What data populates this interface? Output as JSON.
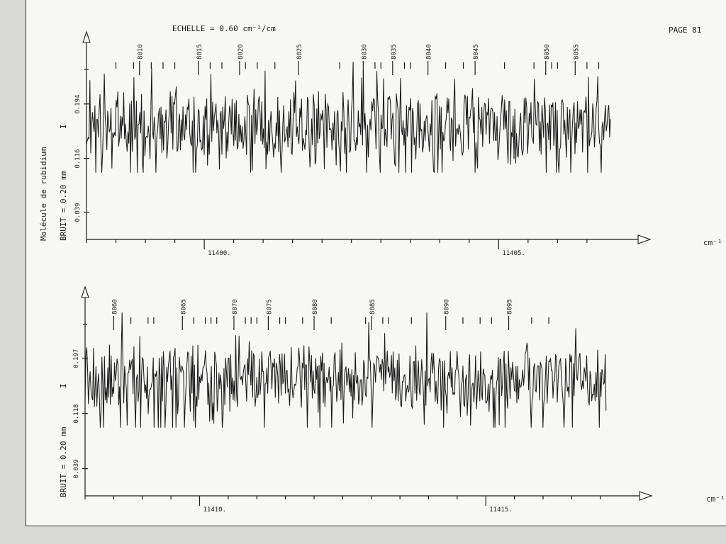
{
  "page": {
    "header_scale": "ECHELLE = 0.60 cm⁻¹/cm",
    "page_label": "PAGE 81",
    "molecule_label": "Molécule de rubidium"
  },
  "colors": {
    "ink": "#1a1a1a",
    "paper": "#f7f7f5",
    "background": "#d9d9d7"
  },
  "chart_data": [
    {
      "type": "line",
      "x_unit_label": "cm⁻¹",
      "y_axis_label": "BRUIT = 0.20 mm",
      "y_symbol": "I",
      "x_range": [
        11398.0,
        11406.9
      ],
      "x_ticks": [
        11400,
        11405
      ],
      "x_tick_labels": [
        "11400.",
        "11405."
      ],
      "y_range": [
        0,
        0.28
      ],
      "y_ticks": [
        0.039,
        0.116,
        0.194
      ],
      "y_tick_labels": [
        "0.039",
        "0.116",
        "0.194"
      ],
      "line_markers": {
        "labeled": [
          "8010",
          "8015",
          "8020",
          "8025",
          "8030",
          "8035",
          "8040",
          "8045",
          "8050",
          "8055"
        ],
        "labeled_x": [
          11398.9,
          11399.9,
          11400.6,
          11401.6,
          11402.7,
          11403.2,
          11403.8,
          11404.6,
          11405.8,
          11406.3
        ],
        "unlabeled_x": [
          11398.5,
          11398.8,
          11399.1,
          11399.3,
          11399.5,
          11400.1,
          11400.3,
          11400.7,
          11400.9,
          11401.2,
          11402.3,
          11402.9,
          11403.0,
          11403.4,
          11403.5,
          11404.1,
          11404.4,
          11405.1,
          11405.6,
          11405.9,
          11406.0,
          11406.5,
          11406.7
        ]
      },
      "series": [
        {
          "values_note": "",
          "x_start": 11398.0,
          "x_end": 11406.9
        }
      ]
    },
    {
      "type": "line",
      "x_unit_label": "cm⁻¹",
      "y_axis_label": "BRUIT = 0.20 mm",
      "y_symbol": "I",
      "x_range": [
        11408.0,
        11417.2
      ],
      "x_ticks": [
        11410,
        11415
      ],
      "x_tick_labels": [
        "11410.",
        "11415."
      ],
      "y_range": [
        0,
        0.28
      ],
      "y_ticks": [
        0.039,
        0.118,
        0.197
      ],
      "y_tick_labels": [
        "0.039",
        "0.118",
        "0.197"
      ],
      "line_markers": {
        "labeled": [
          "8060",
          "8065",
          "8070",
          "8075",
          "8080",
          "8085",
          "8090",
          "8095"
        ],
        "labeled_x": [
          11408.5,
          11409.7,
          11410.6,
          11411.2,
          11412.0,
          11413.0,
          11414.3,
          11415.4
        ],
        "unlabeled_x": [
          11408.8,
          11409.1,
          11409.2,
          11409.9,
          11410.1,
          11410.2,
          11410.3,
          11410.8,
          11410.9,
          11411.0,
          11411.4,
          11411.5,
          11411.8,
          11412.3,
          11412.9,
          11413.2,
          11413.3,
          11413.7,
          11414.6,
          11414.9,
          11415.1,
          11415.8,
          11416.1
        ]
      },
      "series": [
        {
          "values_note": "",
          "x_start": 11408.0,
          "x_end": 11417.1
        }
      ]
    }
  ]
}
